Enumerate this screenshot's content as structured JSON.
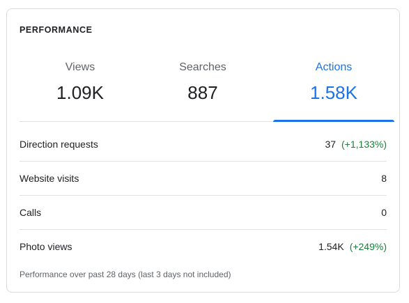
{
  "card": {
    "title": "PERFORMANCE"
  },
  "tabs": [
    {
      "label": "Views",
      "value": "1.09K",
      "active": false
    },
    {
      "label": "Searches",
      "value": "887",
      "active": false
    },
    {
      "label": "Actions",
      "value": "1.58K",
      "active": true
    }
  ],
  "rows": [
    {
      "label": "Direction requests",
      "value": "37",
      "change": "(+1,133%)"
    },
    {
      "label": "Website visits",
      "value": "8",
      "change": ""
    },
    {
      "label": "Calls",
      "value": "0",
      "change": ""
    },
    {
      "label": "Photo views",
      "value": "1.54K",
      "change": "(+249%)"
    }
  ],
  "footnote": "Performance over past 28 days (last 3 days not included)",
  "colors": {
    "accent": "#1a73e8",
    "positive_change": "#188038",
    "divider": "#e0e0e0"
  }
}
